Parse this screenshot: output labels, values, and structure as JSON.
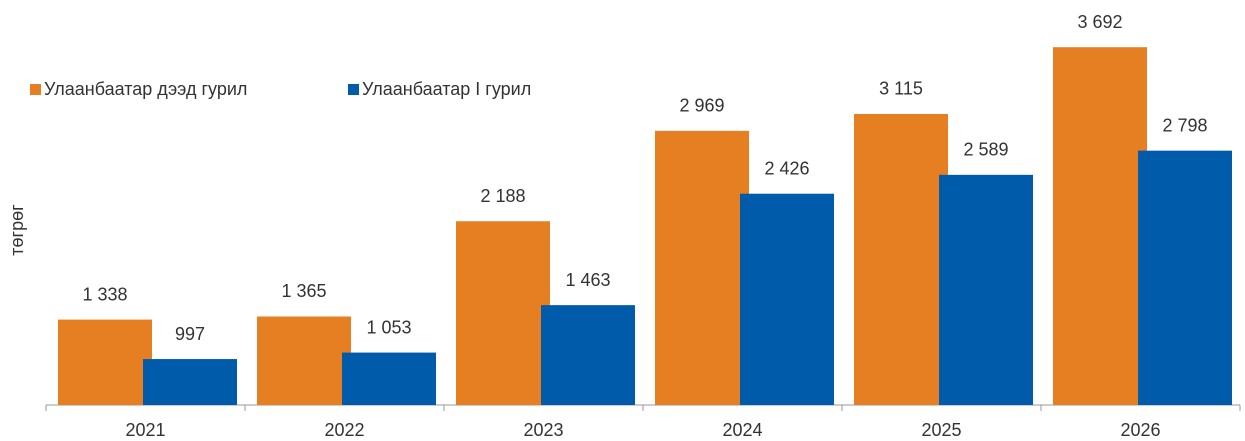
{
  "chart_data": {
    "type": "bar",
    "categories": [
      "2021",
      "2022",
      "2023",
      "2024",
      "2025",
      "2026"
    ],
    "y_label": "төгрөг",
    "ylim": [
      600,
      4100
    ],
    "legend": "top-left",
    "series": [
      {
        "name": "Улаанбаатар дээд гурил",
        "color": "#E67E22",
        "values": [
          1338,
          1365,
          2188,
          2969,
          3115,
          3692
        ],
        "value_labels": [
          "1 338",
          "1 365",
          "2 188",
          "2 969",
          "3 115",
          "3 692"
        ]
      },
      {
        "name": "Улаанбаатар I гурил",
        "color": "#005BAA",
        "values": [
          997,
          1053,
          1463,
          2426,
          2589,
          2798
        ],
        "value_labels": [
          "997",
          "1 053",
          "1 463",
          "2 426",
          "2 589",
          "2 798"
        ]
      }
    ]
  }
}
